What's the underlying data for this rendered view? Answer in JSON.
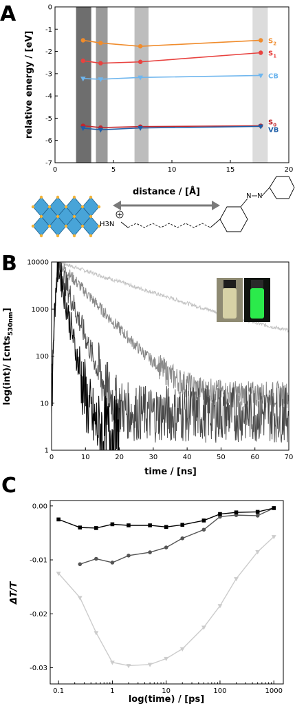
{
  "panel_labels": {
    "a": "A",
    "b": "B",
    "c": "C"
  },
  "molecule": {
    "ammonium": "H3N",
    "charge": "+",
    "arrow_label": "distance / [Å]"
  },
  "chart_data": [
    {
      "panel": "A",
      "type": "line",
      "xlabel": "",
      "ylabel": "relative energy / [eV]",
      "xlim": [
        0,
        20
      ],
      "ylim": [
        -7,
        0
      ],
      "xticks": [
        "0",
        "5",
        "10",
        "15",
        "20"
      ],
      "yticks": [
        "0",
        "-1",
        "-2",
        "-3",
        "-4",
        "-5",
        "-6",
        "-7"
      ],
      "bands": [
        {
          "x0": 1.8,
          "x1": 3.1,
          "color": "#6e6e6e"
        },
        {
          "x0": 3.5,
          "x1": 4.5,
          "color": "#9a9a9a"
        },
        {
          "x0": 6.8,
          "x1": 8.0,
          "color": "#bdbdbd"
        },
        {
          "x0": 16.9,
          "x1": 18.2,
          "color": "#dcdcdc"
        }
      ],
      "series": [
        {
          "name": "S2",
          "sub": "2",
          "color": "#f08c2c",
          "marker": "circle",
          "x": [
            2.4,
            3.9,
            7.3,
            17.6
          ],
          "y": [
            -1.5,
            -1.62,
            -1.77,
            -1.5
          ]
        },
        {
          "name": "S1",
          "sub": "1",
          "color": "#e8423f",
          "marker": "circle",
          "x": [
            2.4,
            3.9,
            7.3,
            17.6
          ],
          "y": [
            -2.42,
            -2.53,
            -2.47,
            -2.06
          ]
        },
        {
          "name": "CB",
          "sub": "",
          "color": "#6fb6ee",
          "marker": "triangle",
          "x": [
            2.4,
            3.9,
            7.3,
            17.6
          ],
          "y": [
            -3.22,
            -3.25,
            -3.17,
            -3.08
          ]
        },
        {
          "name": "S0",
          "sub": "0",
          "color": "#c0262d",
          "marker": "circle",
          "x": [
            2.4,
            3.9,
            7.3,
            17.6
          ],
          "y": [
            -5.34,
            -5.42,
            -5.38,
            -5.34
          ]
        },
        {
          "name": "VB",
          "sub": "",
          "color": "#1f5fa8",
          "marker": "triangle",
          "x": [
            2.4,
            3.9,
            7.3,
            17.6
          ],
          "y": [
            -5.45,
            -5.52,
            -5.44,
            -5.37
          ]
        }
      ]
    },
    {
      "panel": "B",
      "type": "line",
      "xlabel": "time / [ns]",
      "ylabel": "log(int)/ [cnts530nm]",
      "ylabel_main": "log(int)/ [cnts",
      "ylabel_sub": "530nm",
      "ylabel_end": "]",
      "yscale": "log",
      "xlim": [
        0,
        70
      ],
      "ylim": [
        1,
        10000
      ],
      "xticks": [
        "0",
        "10",
        "20",
        "30",
        "40",
        "50",
        "60",
        "70"
      ],
      "yticks": [
        "1",
        "10",
        "100",
        "1000",
        "10000"
      ],
      "series": [
        {
          "color": "#000000",
          "rise": 2,
          "peak": 9000,
          "tau": 1.2,
          "floor": 2.5,
          "noise": 0.35,
          "end": 20
        },
        {
          "color": "#4a4a4a",
          "rise": 2,
          "peak": 9500,
          "tau": 2.2,
          "floor": 6,
          "noise": 0.28,
          "end": 70
        },
        {
          "color": "#8a8a8a",
          "rise": 2,
          "peak": 9800,
          "tau": 5.5,
          "floor": 15,
          "noise": 0.13,
          "end": 70
        },
        {
          "color": "#c4c4c4",
          "rise": 2,
          "peak": 10000,
          "tau": 18,
          "floor": 120,
          "noise": 0.04,
          "end": 70
        }
      ],
      "inset": {
        "vial_left_color": "#d7d2a6",
        "vial_right_color": "#2bea4b"
      }
    },
    {
      "panel": "C",
      "type": "line",
      "xlabel": "log(time) / [ps]",
      "ylabel": "ΔT/T",
      "xscale": "log",
      "xlim": [
        0.07,
        1500
      ],
      "ylim": [
        -0.033,
        0.001
      ],
      "xticks": [
        "0.1",
        "1",
        "10",
        "100",
        "1000"
      ],
      "yticks": [
        "0.00",
        "-0.01",
        "-0.02",
        "-0.03"
      ],
      "series": [
        {
          "color": "#000000",
          "marker": "square",
          "x": [
            0.1,
            0.25,
            0.5,
            1,
            2,
            5,
            10,
            20,
            50,
            100,
            200,
            500,
            1000
          ],
          "y": [
            -0.0025,
            -0.004,
            -0.0041,
            -0.0034,
            -0.0036,
            -0.0036,
            -0.0039,
            -0.0035,
            -0.0027,
            -0.0015,
            -0.0012,
            -0.0011,
            -0.0004
          ]
        },
        {
          "color": "#555555",
          "marker": "circle",
          "x": [
            0.25,
            0.5,
            1,
            2,
            5,
            10,
            20,
            50,
            100,
            200,
            500,
            1000
          ],
          "y": [
            -0.0108,
            -0.0098,
            -0.0105,
            -0.0092,
            -0.0086,
            -0.0077,
            -0.006,
            -0.0044,
            -0.002,
            -0.0017,
            -0.0018,
            -0.0004
          ]
        },
        {
          "color": "#cccccc",
          "marker": "triangle",
          "x": [
            0.1,
            0.25,
            0.5,
            1,
            2,
            5,
            10,
            20,
            50,
            100,
            200,
            500,
            1000
          ],
          "y": [
            -0.0125,
            -0.017,
            -0.0235,
            -0.029,
            -0.0296,
            -0.0294,
            -0.0283,
            -0.0265,
            -0.0225,
            -0.0185,
            -0.0135,
            -0.0085,
            -0.0057
          ]
        }
      ]
    }
  ]
}
